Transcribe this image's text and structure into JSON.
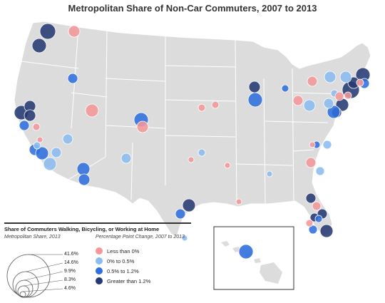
{
  "title": "Metropolitan Share of Non-Car Commuters, 2007 to 2013",
  "colors": {
    "land": "#dcdcdc",
    "state_border": "#ffffff",
    "less_than_0": "#f4979a",
    "0_to_0_5": "#8bbcf0",
    "0_5_to_1_2": "#2f6fde",
    "greater_than_1_2": "#243a72"
  },
  "legend": {
    "heading": "Share of Commuters Walking, Bicycling, or Working at Home",
    "size_title": "Metropolitan Share, 2013",
    "size_values": [
      "41.6%",
      "14.6%",
      "9.9%",
      "8.3%",
      "4.6%"
    ],
    "color_title": "Percentage Point Change, 2007 to 2013",
    "color_items": [
      {
        "label": "Less than 0%",
        "key": "less_than_0"
      },
      {
        "label": "0% to 0.5%",
        "key": "0_to_0_5"
      },
      {
        "label": "0.5% to 1.2%",
        "key": "0_5_to_1_2"
      },
      {
        "label": "Greater than 1.2%",
        "key": "greater_than_1_2"
      }
    ]
  }
}
